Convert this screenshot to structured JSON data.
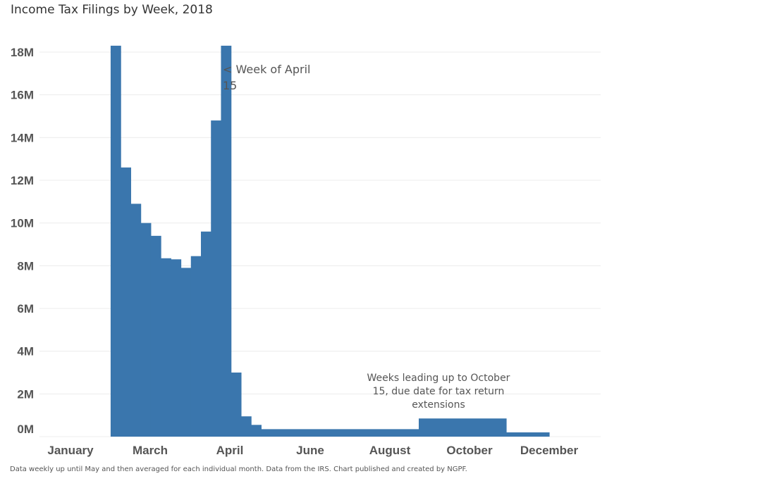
{
  "title": "Income Tax Filings by Week, 2018",
  "footnote": "Data weekly up until May and then averaged for each individual month. Data from the IRS. Chart published and created by NGPF.",
  "colors": {
    "bar": "#3a76ad",
    "grid": "#ececec",
    "text": "#555555"
  },
  "chart_data": {
    "type": "bar",
    "title": "Income Tax Filings by Week, 2018",
    "xlabel": "",
    "ylabel": "",
    "ylim": [
      0,
      18
    ],
    "y_unit": "M",
    "y_ticks": [
      "0M",
      "2M",
      "4M",
      "6M",
      "8M",
      "10M",
      "12M",
      "14M",
      "16M",
      "18M"
    ],
    "x_ticks": [
      "January",
      "March",
      "April",
      "June",
      "August",
      "October",
      "December"
    ],
    "grid": true,
    "segments": [
      {
        "start": "2018-01-29",
        "end": "2018-02-05",
        "value": 18.3
      },
      {
        "start": "2018-02-05",
        "end": "2018-02-12",
        "value": 12.6
      },
      {
        "start": "2018-02-12",
        "end": "2018-02-19",
        "value": 10.9
      },
      {
        "start": "2018-02-19",
        "end": "2018-02-26",
        "value": 10.0
      },
      {
        "start": "2018-02-26",
        "end": "2018-03-05",
        "value": 9.4
      },
      {
        "start": "2018-03-05",
        "end": "2018-03-12",
        "value": 8.35
      },
      {
        "start": "2018-03-12",
        "end": "2018-03-19",
        "value": 8.3
      },
      {
        "start": "2018-03-19",
        "end": "2018-03-26",
        "value": 7.9
      },
      {
        "start": "2018-03-26",
        "end": "2018-04-02",
        "value": 8.45
      },
      {
        "start": "2018-04-02",
        "end": "2018-04-09",
        "value": 9.6
      },
      {
        "start": "2018-04-09",
        "end": "2018-04-16",
        "value": 14.8
      },
      {
        "start": "2018-04-16",
        "end": "2018-04-23",
        "value": 18.3
      },
      {
        "start": "2018-04-23",
        "end": "2018-04-30",
        "value": 3.0
      },
      {
        "start": "2018-04-30",
        "end": "2018-05-07",
        "value": 0.95
      },
      {
        "start": "2018-05-07",
        "end": "2018-05-14",
        "value": 0.55
      },
      {
        "start": "2018-05-14",
        "end": "2018-09-01",
        "value": 0.35
      },
      {
        "start": "2018-09-01",
        "end": "2018-11-01",
        "value": 0.85
      },
      {
        "start": "2018-11-01",
        "end": "2018-12-01",
        "value": 0.2
      }
    ],
    "annotations": [
      {
        "lines": [
          "< Week of April",
          "15"
        ]
      },
      {
        "lines": [
          "Weeks leading up to October",
          "15, due date for tax return",
          "extensions"
        ]
      }
    ]
  }
}
